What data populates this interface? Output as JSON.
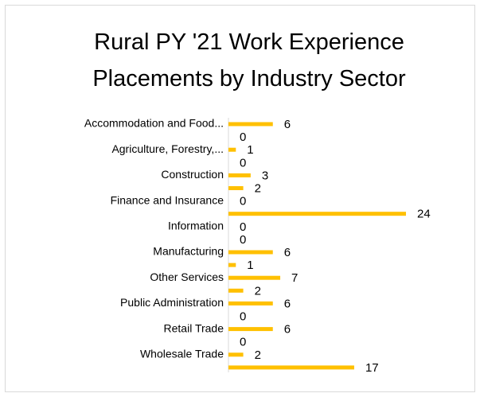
{
  "chart_data": {
    "type": "bar",
    "orientation": "horizontal",
    "title": "Rural PY '21 Work Experience Placements by Industry Sector",
    "categories": [
      "Accommodation and Food...",
      null,
      "Agriculture, Forestry,...",
      null,
      "Construction",
      null,
      "Finance and Insurance",
      null,
      "Information",
      null,
      "Manufacturing",
      null,
      "Other Services",
      null,
      "Public Administration",
      null,
      "Retail Trade",
      null,
      "Wholesale Trade",
      null
    ],
    "values": [
      6,
      0,
      1,
      0,
      3,
      2,
      0,
      24,
      0,
      0,
      6,
      1,
      7,
      2,
      6,
      0,
      6,
      0,
      2,
      17
    ],
    "color": "#FFC000"
  }
}
